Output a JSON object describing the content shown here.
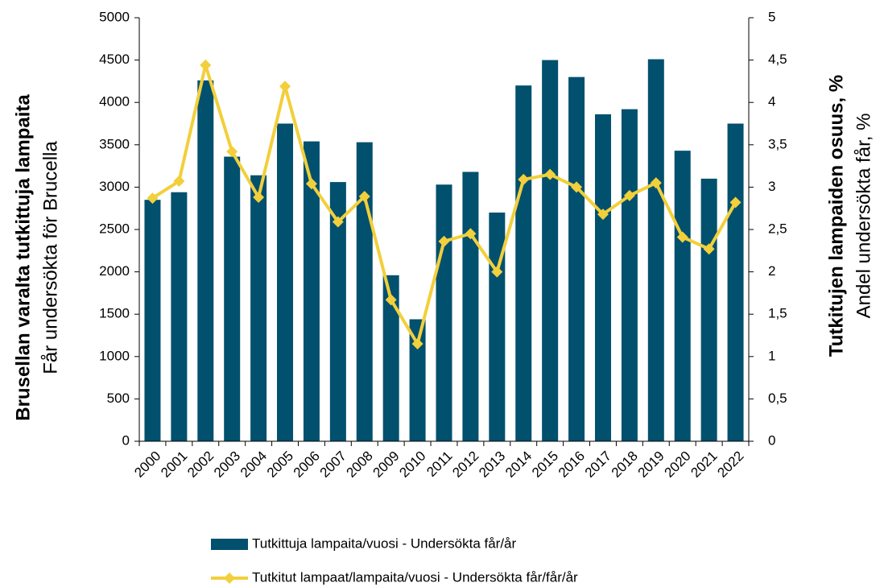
{
  "chart_data": {
    "type": "bar_line",
    "ylabel": [
      "Brusellan varalta tutkittuja lampaita",
      "Får undersökta för Brucella"
    ],
    "y2label": [
      "Tutkitujen lampaiden osuus, %",
      "Andel undersökta får, %"
    ],
    "categories": [
      "2000",
      "2001",
      "2002",
      "2003",
      "2004",
      "2005",
      "2006",
      "2007",
      "2008",
      "2009",
      "2010",
      "2011",
      "2012",
      "2013",
      "2014",
      "2015",
      "2016",
      "2017",
      "2018",
      "2019",
      "2020",
      "2021",
      "2022"
    ],
    "series": [
      {
        "name": "Tutkittuja lampaita/vuosi - Undersökta får/år",
        "type": "bar",
        "color": "#00506e",
        "values": [
          2850,
          2940,
          4260,
          3360,
          3140,
          3750,
          3540,
          3060,
          3530,
          1960,
          1440,
          3030,
          3180,
          2700,
          4200,
          4500,
          4300,
          3860,
          3920,
          4510,
          3430,
          3100,
          3750
        ]
      },
      {
        "name": "Tutkitut lampaat/lampaita/vuosi - Undersökta får/får/år",
        "type": "line",
        "axis": "y2",
        "color": "#f2cf3b",
        "values": [
          2.87,
          3.07,
          4.44,
          3.42,
          2.88,
          4.19,
          3.04,
          2.59,
          2.89,
          1.67,
          1.15,
          2.36,
          2.45,
          2.0,
          3.09,
          3.15,
          3.0,
          2.68,
          2.9,
          3.05,
          2.41,
          2.27,
          2.82
        ]
      }
    ],
    "ylim": [
      0,
      5000
    ],
    "yticks": [
      0,
      500,
      1000,
      1500,
      2000,
      2500,
      3000,
      3500,
      4000,
      4500,
      5000
    ],
    "y2lim": [
      0,
      5
    ],
    "y2ticks": [
      0,
      {
        "value": 0.5,
        "label": "0,5"
      },
      1,
      {
        "value": 1.5,
        "label": "1,5"
      },
      2,
      {
        "value": 2.5,
        "label": "2,5"
      },
      3,
      {
        "value": 3.5,
        "label": "3,5"
      },
      4,
      {
        "value": 4.5,
        "label": "4,5"
      },
      5
    ],
    "legend": "bottom"
  }
}
